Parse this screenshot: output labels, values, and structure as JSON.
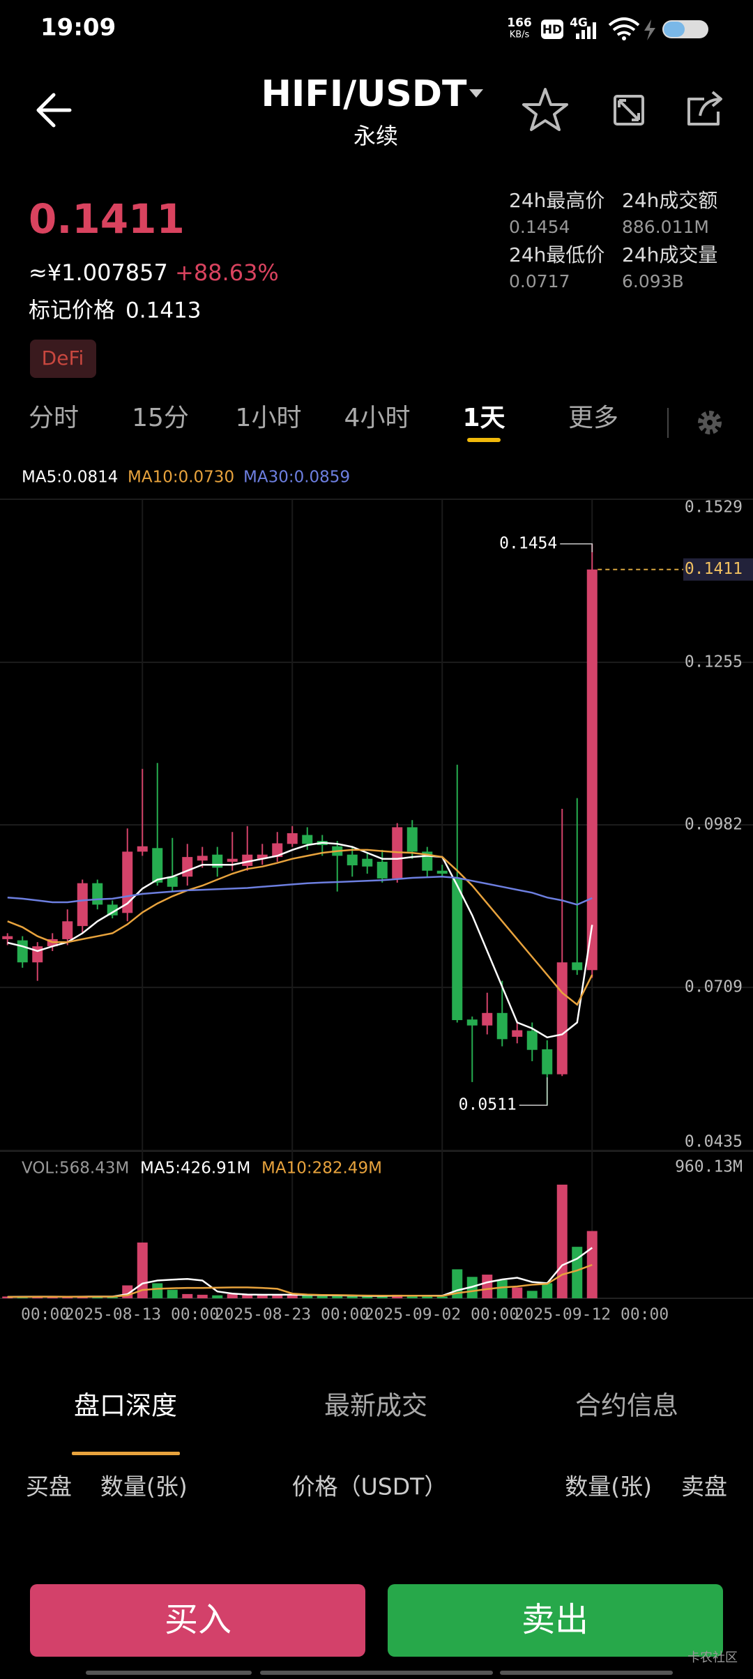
{
  "status_bar": {
    "time": "19:09",
    "net_speed": "166",
    "net_unit": "KB/s",
    "hd": "HD",
    "signal": "4G"
  },
  "header": {
    "pair": "HIFI/USDT",
    "contract": "永续"
  },
  "ticker": {
    "price": "0.1411",
    "cny": "≈¥1.007857",
    "change": "+88.63%",
    "mark_label": "标记价格",
    "mark_price": "0.1413",
    "tag": "DeFi",
    "stats": [
      {
        "label": "24h最高价",
        "value": "0.1454"
      },
      {
        "label": "24h成交额",
        "value": "886.011M"
      },
      {
        "label": "24h最低价",
        "value": "0.0717"
      },
      {
        "label": "24h成交量",
        "value": "6.093B"
      }
    ]
  },
  "intervals": [
    {
      "label": "分时"
    },
    {
      "label": "15分"
    },
    {
      "label": "1小时"
    },
    {
      "label": "4小时"
    },
    {
      "label": "1天",
      "selected": true
    },
    {
      "label": "更多"
    }
  ],
  "chart_data": {
    "type": "candlestick",
    "up_color": "#d4436a",
    "down_color": "#26ad50",
    "open": [
      0.079,
      0.0788,
      0.0751,
      0.0778,
      0.079,
      0.0812,
      0.0884,
      0.0848,
      0.0834,
      0.0937,
      0.0943,
      0.0895,
      0.0895,
      0.0922,
      0.0932,
      0.092,
      0.0913,
      0.0925,
      0.0928,
      0.095,
      0.0965,
      0.0955,
      0.0946,
      0.0932,
      0.0925,
      0.092,
      0.0892,
      0.0978,
      0.0937,
      0.0905,
      0.0892,
      0.0655,
      0.0645,
      0.0666,
      0.0626,
      0.0636,
      0.0605,
      0.0563,
      0.0751,
      0.0738
    ],
    "high": [
      0.08,
      0.0795,
      0.0785,
      0.08,
      0.084,
      0.089,
      0.089,
      0.0855,
      0.0976,
      0.1076,
      0.1086,
      0.096,
      0.095,
      0.0945,
      0.0945,
      0.097,
      0.098,
      0.095,
      0.097,
      0.098,
      0.0978,
      0.0965,
      0.0955,
      0.0945,
      0.0935,
      0.094,
      0.0985,
      0.099,
      0.0945,
      0.0915,
      0.1083,
      0.066,
      0.07,
      0.072,
      0.065,
      0.065,
      0.062,
      0.1009,
      0.1027,
      0.1454
    ],
    "low": [
      0.078,
      0.0742,
      0.072,
      0.077,
      0.078,
      0.08,
      0.084,
      0.0825,
      0.082,
      0.093,
      0.088,
      0.087,
      0.088,
      0.091,
      0.0895,
      0.0905,
      0.0905,
      0.0915,
      0.092,
      0.0945,
      0.094,
      0.093,
      0.087,
      0.0895,
      0.09,
      0.0885,
      0.0885,
      0.0925,
      0.0895,
      0.0895,
      0.065,
      0.055,
      0.063,
      0.061,
      0.0615,
      0.0585,
      0.0511,
      0.056,
      0.073,
      0.0725
    ],
    "close": [
      0.0795,
      0.0751,
      0.0778,
      0.079,
      0.082,
      0.0884,
      0.0848,
      0.083,
      0.0937,
      0.0946,
      0.0885,
      0.0878,
      0.0928,
      0.093,
      0.091,
      0.0925,
      0.0932,
      0.0932,
      0.0951,
      0.0968,
      0.095,
      0.0948,
      0.093,
      0.0914,
      0.0912,
      0.0892,
      0.0978,
      0.0937,
      0.0905,
      0.09,
      0.0654,
      0.0645,
      0.0666,
      0.0622,
      0.0637,
      0.0604,
      0.0563,
      0.0751,
      0.0738,
      0.1411
    ],
    "series": [
      {
        "name": "MA5:0.0814",
        "color": "#ffffff",
        "values": [
          0.0784,
          0.0778,
          0.077,
          0.0778,
          0.0785,
          0.08,
          0.082,
          0.0835,
          0.085,
          0.0875,
          0.089,
          0.0895,
          0.0905,
          0.0915,
          0.0915,
          0.0915,
          0.092,
          0.0925,
          0.093,
          0.094,
          0.0948,
          0.0952,
          0.095,
          0.0945,
          0.0935,
          0.0925,
          0.0925,
          0.0928,
          0.093,
          0.0928,
          0.088,
          0.083,
          0.077,
          0.071,
          0.065,
          0.064,
          0.0625,
          0.063,
          0.065,
          0.0814
        ]
      },
      {
        "name": "MA10:0.0730",
        "color": "#e8a33d",
        "values": [
          0.082,
          0.081,
          0.0795,
          0.0785,
          0.0785,
          0.079,
          0.0795,
          0.08,
          0.0815,
          0.0835,
          0.085,
          0.0862,
          0.0872,
          0.088,
          0.089,
          0.09,
          0.0908,
          0.0912,
          0.0918,
          0.0925,
          0.093,
          0.0935,
          0.0938,
          0.094,
          0.094,
          0.0938,
          0.0936,
          0.0935,
          0.0932,
          0.0928,
          0.0905,
          0.088,
          0.085,
          0.082,
          0.079,
          0.076,
          0.073,
          0.07,
          0.068,
          0.073
        ]
      },
      {
        "name": "MA30:0.0859",
        "color": "#6d7fe0",
        "values": [
          0.086,
          0.0858,
          0.0855,
          0.0852,
          0.0852,
          0.0855,
          0.0857,
          0.0858,
          0.0862,
          0.0866,
          0.0868,
          0.087,
          0.0872,
          0.0873,
          0.0874,
          0.0875,
          0.0876,
          0.0878,
          0.088,
          0.0882,
          0.0884,
          0.0885,
          0.0886,
          0.0887,
          0.0888,
          0.0889,
          0.0891,
          0.0893,
          0.0894,
          0.0895,
          0.0893,
          0.0888,
          0.0883,
          0.0878,
          0.0873,
          0.0868,
          0.086,
          0.0855,
          0.0848,
          0.0859
        ]
      }
    ],
    "ylim": [
      0.0435,
      0.1529
    ],
    "yticks": [
      0.1529,
      0.1255,
      0.0982,
      0.0709,
      0.0435
    ],
    "current_price": 0.1411,
    "xticks": [
      {
        "value": -1,
        "label": "00:00"
      },
      {
        "value": 9,
        "label": "2025-08-13 00:00"
      },
      {
        "value": 19,
        "label": "2025-08-23 00:00"
      },
      {
        "value": 29,
        "label": "2025-09-02 00:00"
      },
      {
        "value": 39,
        "label": "2025-09-12 00:00"
      }
    ],
    "volume": {
      "label": "VOL:568.43M",
      "values": [
        15,
        18,
        12,
        10,
        12,
        20,
        18,
        14,
        109,
        471,
        127,
        72,
        36,
        30,
        25,
        36,
        30,
        25,
        28,
        30,
        25,
        20,
        22,
        18,
        15,
        20,
        30,
        25,
        20,
        15,
        245,
        181,
        200,
        154,
        91,
        63,
        127,
        960.13,
        435,
        568.43
      ],
      "ylim": [
        0,
        960.13
      ],
      "yticks": [
        {
          "value": 960.13,
          "label": "960.13M"
        }
      ],
      "series": [
        {
          "name": "MA5:426.91M",
          "color": "#ffffff",
          "values": [
            12,
            13,
            14,
            14,
            13,
            14,
            15,
            15,
            35,
            125,
            150,
            158,
            163,
            150,
            58,
            40,
            32,
            30,
            30,
            30,
            28,
            26,
            25,
            23,
            20,
            19,
            21,
            22,
            22,
            22,
            67,
            97,
            135,
            159,
            174,
            138,
            127,
            279,
            335,
            426.91
          ]
        },
        {
          "name": "MA10:282.49M",
          "color": "#e8a33d",
          "values": [
            12,
            12,
            13,
            13,
            13,
            13,
            14,
            14,
            25,
            70,
            80,
            85,
            88,
            88,
            90,
            92,
            92,
            88,
            80,
            40,
            32,
            28,
            27,
            25,
            23,
            22,
            22,
            22,
            21,
            20,
            44,
            60,
            78,
            92,
            100,
            115,
            122,
            200,
            235,
            282.49
          ]
        }
      ]
    }
  },
  "book_tabs": [
    {
      "label": "盘口深度",
      "selected": true
    },
    {
      "label": "最新成交"
    },
    {
      "label": "合约信息"
    }
  ],
  "book_headers": [
    "买盘",
    "数量(张)",
    "价格（USDT）",
    "数量(张)",
    "卖盘"
  ],
  "buttons": {
    "buy": "买入",
    "sell": "卖出"
  },
  "watermark": "卡农社区"
}
